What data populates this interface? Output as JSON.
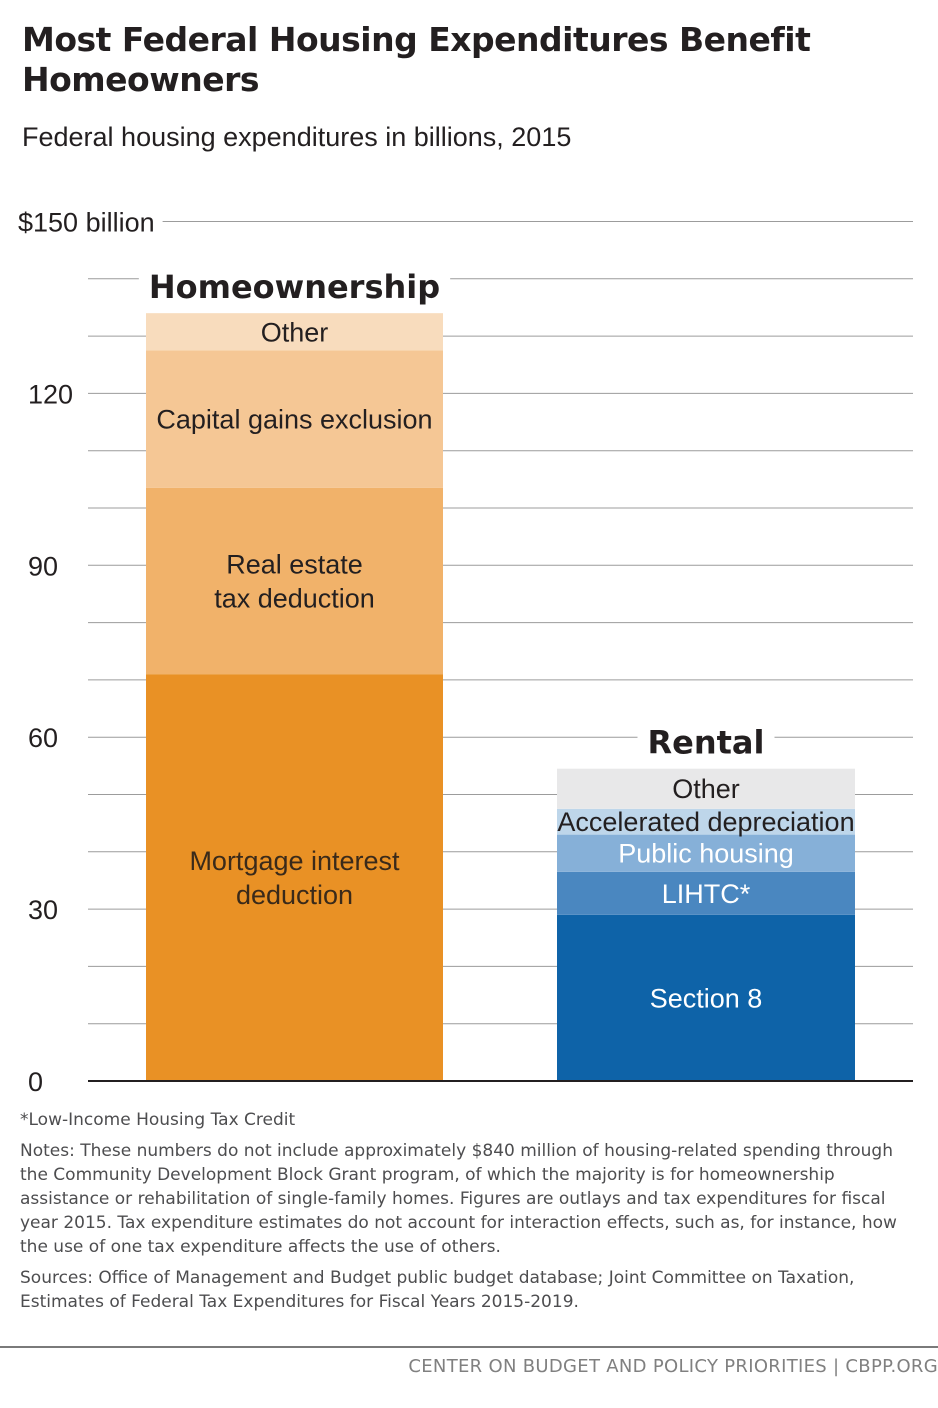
{
  "header": {
    "title": "Most Federal Housing Expenditures Benefit Homeowners",
    "subtitle": "Federal housing expenditures in billions, 2015"
  },
  "chart_data": {
    "type": "bar",
    "stacked": true,
    "categories": [
      "Homeownership",
      "Rental"
    ],
    "ylim": [
      0,
      150
    ],
    "y_ticks": [
      0,
      30,
      60,
      90,
      120,
      150
    ],
    "y_tick_labels": [
      "0",
      "30",
      "60",
      "90",
      "120",
      "$150 billion"
    ],
    "gridlines": true,
    "stacks": [
      {
        "category": "Homeownership",
        "segments": [
          {
            "label": "Mortgage interest deduction",
            "lines": [
              "Mortgage interest",
              "deduction"
            ],
            "value": 71,
            "color": "#e99125",
            "text_color": "#3a2a1a"
          },
          {
            "label": "Real estate tax deduction",
            "lines": [
              "Real estate",
              "tax deduction"
            ],
            "value": 32.5,
            "color": "#f1b26a",
            "text_color": "#231f20"
          },
          {
            "label": "Capital gains exclusion",
            "lines": [
              "Capital gains exclusion"
            ],
            "value": 24,
            "color": "#f5c795",
            "text_color": "#231f20"
          },
          {
            "label": "Other",
            "lines": [
              "Other"
            ],
            "value": 6.5,
            "color": "#f8dcbd",
            "text_color": "#231f20"
          }
        ]
      },
      {
        "category": "Rental",
        "segments": [
          {
            "label": "Section 8",
            "lines": [
              "Section 8"
            ],
            "value": 29,
            "color": "#0e63a8",
            "text_color": "#ffffff"
          },
          {
            "label": "LIHTC*",
            "lines": [
              "LIHTC*"
            ],
            "value": 7.5,
            "color": "#4a87c0",
            "text_color": "#ffffff"
          },
          {
            "label": "Public housing",
            "lines": [
              "Public housing"
            ],
            "value": 6.5,
            "color": "#86b0d8",
            "text_color": "#ffffff"
          },
          {
            "label": "Accelerated depreciation",
            "lines": [
              "Accelerated depreciation"
            ],
            "value": 4.5,
            "color": "#bed6ea",
            "text_color": "#231f20"
          },
          {
            "label": "Other",
            "lines": [
              "Other"
            ],
            "value": 7,
            "color": "#e8e8e9",
            "text_color": "#231f20"
          }
        ]
      }
    ]
  },
  "footnotes": {
    "asterisk": "*Low-Income Housing Tax Credit",
    "notes": "Notes: These numbers do not include approximately $840 million of housing-related spending through the Community Development Block Grant program, of which the majority is for homeownership assistance or rehabilitation of single-family homes.  Figures are outlays and tax expenditures for fiscal year 2015.  Tax expenditure estimates do not account for interaction effects, such as, for instance, how the use of one tax expenditure affects the use of others.",
    "sources": "Sources: Office of Management and Budget public budget database; Joint Committee on Taxation, Estimates of Federal Tax Expenditures for Fiscal Years 2015-2019."
  },
  "footer": {
    "credit": "CENTER ON BUDGET AND POLICY PRIORITIES | CBPP.ORG"
  }
}
